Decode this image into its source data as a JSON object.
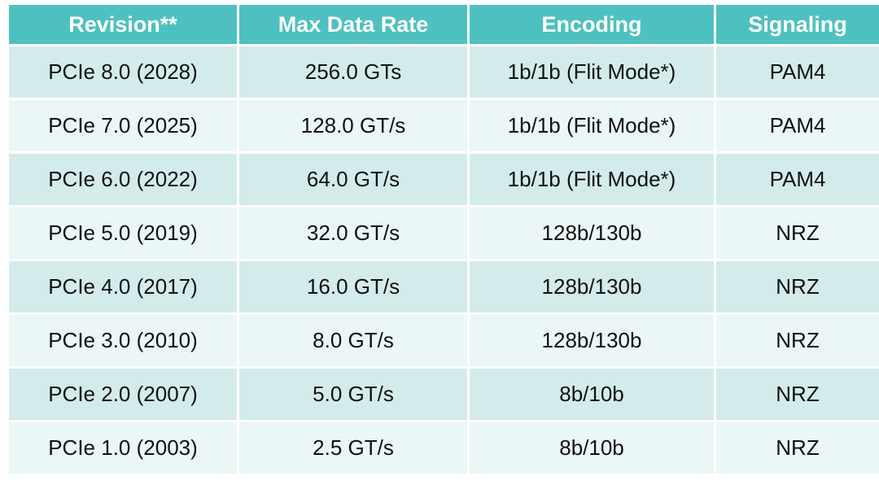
{
  "table": {
    "header": {
      "revision": "Revision**",
      "max_rate": "Max Data Rate",
      "encoding": "Encoding",
      "signaling": "Signaling"
    },
    "rows": [
      {
        "revision": "PCIe 8.0 (2028)",
        "max_rate": "256.0 GTs",
        "encoding": "1b/1b (Flit Mode*)",
        "signaling": "PAM4"
      },
      {
        "revision": "PCIe 7.0 (2025)",
        "max_rate": "128.0 GT/s",
        "encoding": "1b/1b (Flit Mode*)",
        "signaling": "PAM4"
      },
      {
        "revision": "PCIe 6.0 (2022)",
        "max_rate": "64.0 GT/s",
        "encoding": "1b/1b (Flit Mode*)",
        "signaling": "PAM4"
      },
      {
        "revision": "PCIe 5.0 (2019)",
        "max_rate": "32.0 GT/s",
        "encoding": "128b/130b",
        "signaling": "NRZ"
      },
      {
        "revision": "PCIe 4.0 (2017)",
        "max_rate": "16.0 GT/s",
        "encoding": "128b/130b",
        "signaling": "NRZ"
      },
      {
        "revision": "PCIe 3.0 (2010)",
        "max_rate": "8.0 GT/s",
        "encoding": "128b/130b",
        "signaling": "NRZ"
      },
      {
        "revision": "PCIe 2.0 (2007)",
        "max_rate": "5.0 GT/s",
        "encoding": "8b/10b",
        "signaling": "NRZ"
      },
      {
        "revision": "PCIe 1.0 (2003)",
        "max_rate": "2.5 GT/s",
        "encoding": "8b/10b",
        "signaling": "NRZ"
      }
    ]
  },
  "colors": {
    "header_bg": "#4fc0c0",
    "header_text": "#ffffff",
    "row_dark": "#d3ebeb",
    "row_light": "#ebf6f6"
  }
}
